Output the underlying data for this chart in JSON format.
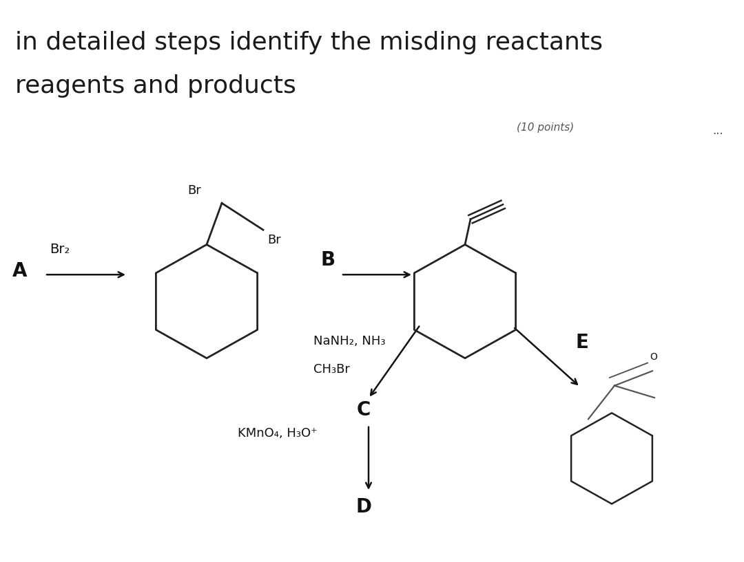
{
  "title_line1": "in detailed steps identify the misding reactants",
  "title_line2": "reagents and products",
  "title_fontsize": 26,
  "title_color": "#1a1a1a",
  "bg_color_outer": "#ffffff",
  "bg_color_inner": "#b8b090",
  "text_color": "#111111",
  "label_A": "A",
  "label_B": "B",
  "label_C": "C",
  "label_D": "D",
  "label_E": "E",
  "reagent_A": "Br₂",
  "reagent_B_line1": "NaNH₂, NH₃",
  "reagent_B_line2": "CH₃Br",
  "reagent_C": "KMnO₄, H₃O⁺",
  "label_Br_top": "Br",
  "label_Br_side": "Br",
  "watermark": "(10 points)",
  "dots": "..."
}
